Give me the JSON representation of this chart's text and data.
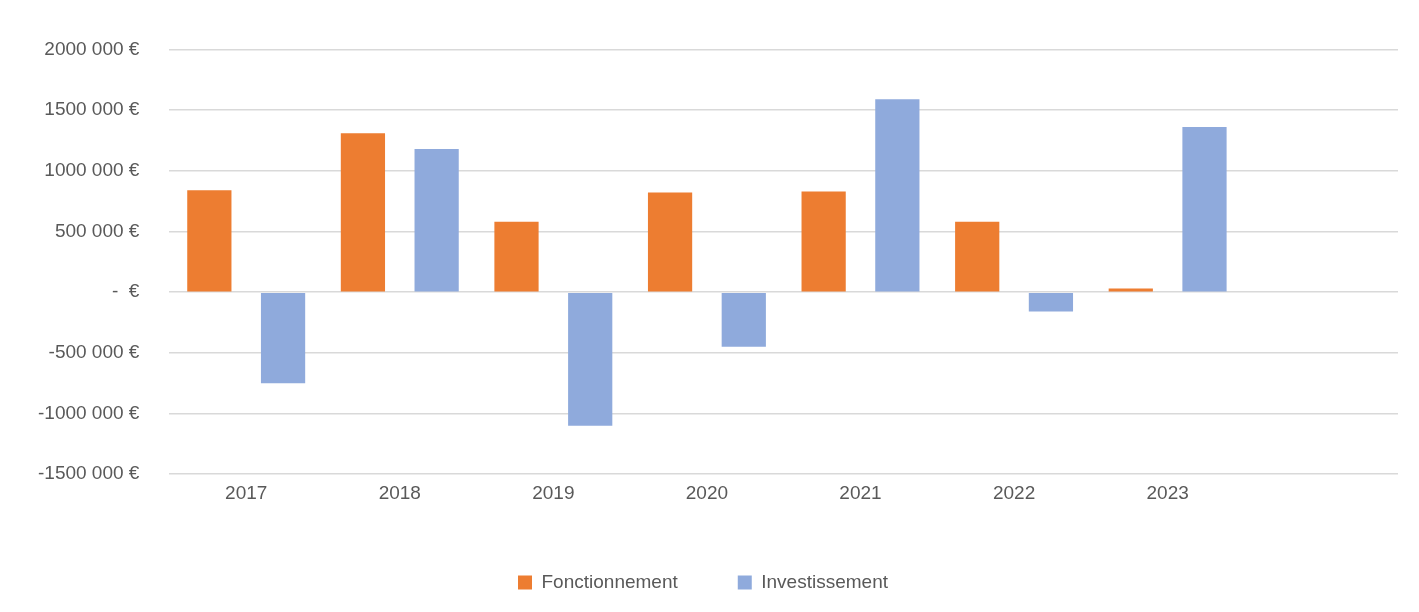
{
  "chart_data": {
    "type": "bar",
    "categories": [
      "2017",
      "2018",
      "2019",
      "2020",
      "2021",
      "2022",
      "2023",
      null
    ],
    "series": [
      {
        "name": "Fonctionnement",
        "color": "#ed7d31",
        "values": [
          840000,
          1310000,
          580000,
          820000,
          830000,
          580000,
          30000,
          null
        ]
      },
      {
        "name": "Investissement",
        "color": "#8faadc",
        "values": [
          -750000,
          1180000,
          -1100000,
          -450000,
          1590000,
          -160000,
          1360000,
          null
        ]
      }
    ],
    "ylim": [
      -1500000,
      2000000
    ],
    "yticks": [
      {
        "value": -1500000,
        "label": "-1500 000 €"
      },
      {
        "value": -1000000,
        "label": "-1000 000 €"
      },
      {
        "value": -500000,
        "label": "-500 000 €"
      },
      {
        "value": 0,
        "label": "-  €"
      },
      {
        "value": 500000,
        "label": "500 000 €"
      },
      {
        "value": 1000000,
        "label": "1000 000 €"
      },
      {
        "value": 1500000,
        "label": "1500 000 €"
      },
      {
        "value": 2000000,
        "label": "2000 000 €"
      }
    ],
    "grid": "y",
    "legend": "bottom"
  }
}
